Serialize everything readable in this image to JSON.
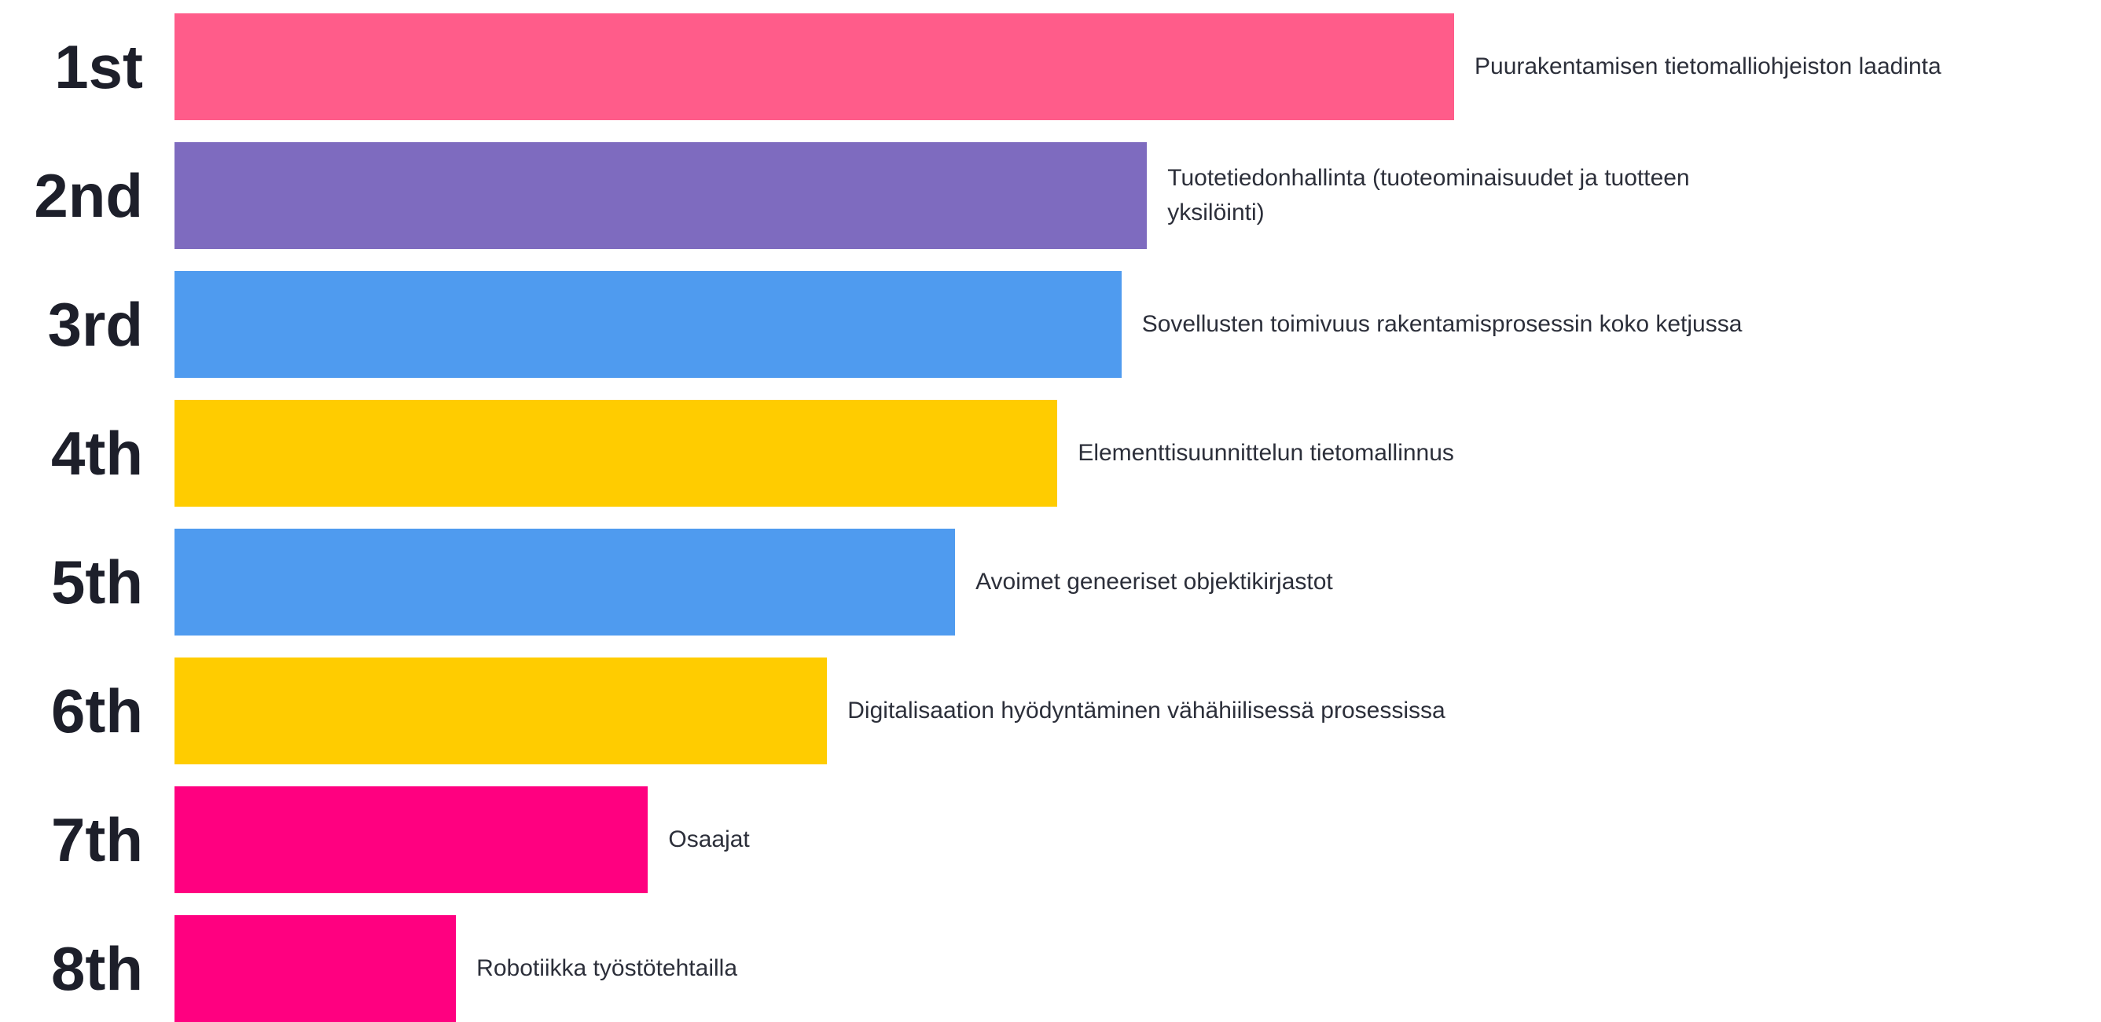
{
  "chart_data": {
    "type": "ranking",
    "categories": [
      "1st",
      "2nd",
      "3rd",
      "4th",
      "5th",
      "6th",
      "7th",
      "8th"
    ],
    "series": [
      {
        "labels": [
          "Puurakentamisen tietomalliohjeiston laadinta",
          "Tuotetiedonhallinta (tuoteominaisuudet ja tuotteen yksilöinti)",
          "Sovellusten toimivuus rakentamisprosessin koko ketjussa",
          "Elementtisuunnittelun tietomallinnus",
          "Avoimet geneeriset objektikirjastot",
          "Digitalisaation hyödyntäminen vähähiilisessä prosessissa",
          "Osaajat",
          "Robotiikka työstötehtailla"
        ],
        "values": [
          100,
          76,
          74,
          69,
          61,
          51,
          37,
          22
        ],
        "colors": [
          "#ff5c8a",
          "#7e6bbf",
          "#4f9bef",
          "#ffcc00",
          "#4f9bef",
          "#ffcc00",
          "#ff0080",
          "#ff0080"
        ]
      }
    ]
  }
}
